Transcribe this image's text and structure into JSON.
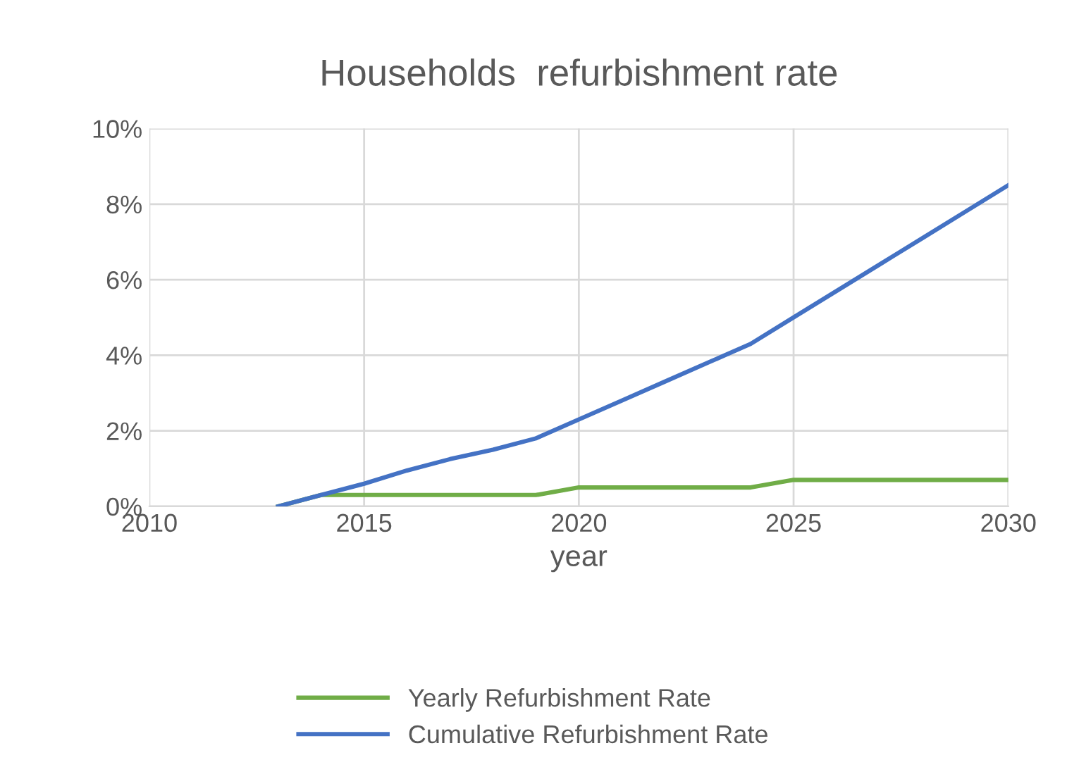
{
  "chart_data": {
    "type": "line",
    "title": "Households  refurbishment rate",
    "xlabel": "year",
    "x": [
      2013,
      2014,
      2015,
      2016,
      2017,
      2018,
      2019,
      2020,
      2021,
      2022,
      2023,
      2024,
      2025,
      2026,
      2027,
      2028,
      2029,
      2030
    ],
    "series": [
      {
        "name": "Yearly Refurbishment Rate",
        "color": "#70ad47",
        "values": [
          0,
          0.3,
          0.3,
          0.3,
          0.3,
          0.3,
          0.3,
          0.5,
          0.5,
          0.5,
          0.5,
          0.5,
          0.7,
          0.7,
          0.7,
          0.7,
          0.7,
          0.7
        ]
      },
      {
        "name": "Cumulative Refurbishment Rate",
        "color": "#4472c4",
        "values": [
          0,
          0.3,
          0.6,
          0.95,
          1.25,
          1.5,
          1.8,
          2.3,
          2.8,
          3.3,
          3.8,
          4.3,
          5.0,
          5.7,
          6.4,
          7.1,
          7.8,
          8.5
        ]
      }
    ],
    "xlim": [
      2010,
      2030
    ],
    "xticks": [
      2010,
      2015,
      2020,
      2025,
      2030
    ],
    "ylim": [
      0,
      10
    ],
    "yticks": [
      {
        "value": 0,
        "label": "0%"
      },
      {
        "value": 2,
        "label": "2%"
      },
      {
        "value": 4,
        "label": "4%"
      },
      {
        "value": 6,
        "label": "6%"
      },
      {
        "value": 8,
        "label": "8%"
      },
      {
        "value": 10,
        "label": "10%"
      }
    ],
    "grid": true,
    "legend": "bottom",
    "marker": "none",
    "line_style": "solid"
  }
}
